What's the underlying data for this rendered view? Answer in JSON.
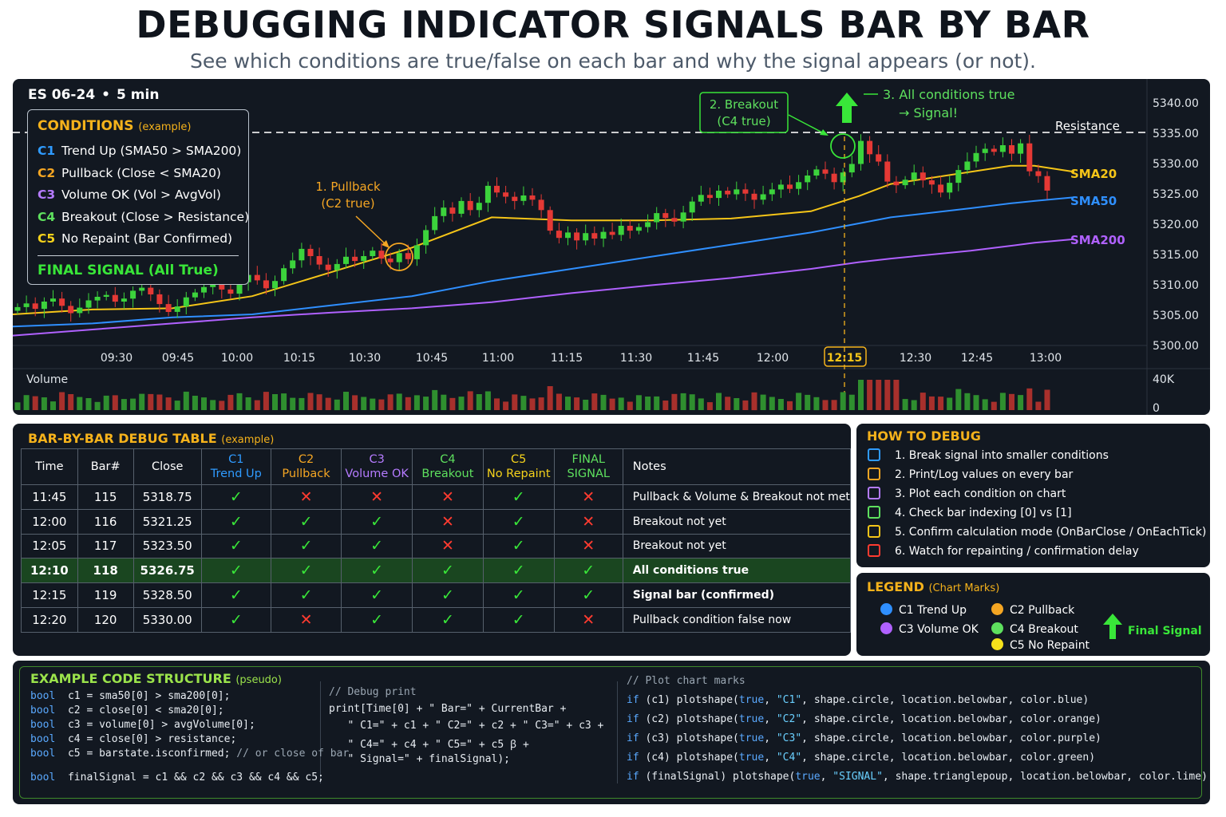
{
  "header": {
    "title": "DEBUGGING INDICATOR SIGNALS BAR BY BAR",
    "subtitle": "See which conditions are true/false on each bar and why the signal appears (or not)."
  },
  "chart": {
    "symbol": "ES 06-24",
    "separator": "•",
    "timeframe": "5 min",
    "price_ticks": [
      "5340.00",
      "5335.00",
      "5330.00",
      "5325.00",
      "5320.00",
      "5315.00",
      "5310.00",
      "5305.00",
      "5300.00"
    ],
    "time_ticks": [
      "09:30",
      "09:45",
      "10:00",
      "10:15",
      "10:30",
      "10:45",
      "11:00",
      "11:15",
      "11:30",
      "11:45",
      "12:00",
      "12:15",
      "12:30",
      "12:45",
      "13:00"
    ],
    "highlight_time": "12:15",
    "resistance_label": "Resistance",
    "resistance_value": 5335,
    "ma_labels": [
      "SMA20",
      "SMA50",
      "SMA200"
    ],
    "annotations": {
      "pullback_line1": "1. Pullback",
      "pullback_line2": "(C2 true)",
      "breakout_line1": "2. Breakout",
      "breakout_line2": "(C4 true)",
      "signal_line1": "3. All conditions true",
      "signal_line2": "→ Signal!"
    },
    "volume": {
      "label": "Volume",
      "max_tick": "40K",
      "min_tick": "0"
    },
    "colors": {
      "up": "#3cd33c",
      "down": "#e53935",
      "sma20": "#f5c518",
      "sma50": "#2f8fff",
      "sma200": "#b061ff",
      "resistance": "#e6e6e6",
      "signal": "#39e639"
    }
  },
  "conditions": {
    "title": "CONDITIONS",
    "title_note": "(example)",
    "items": [
      {
        "tag": "C1",
        "text": "Trend Up (SMA50 > SMA200)",
        "color": "#2f9bff"
      },
      {
        "tag": "C2",
        "text": "Pullback (Close < SMA20)",
        "color": "#f5a623"
      },
      {
        "tag": "C3",
        "text": "Volume OK (Vol > AvgVol)",
        "color": "#b57bff"
      },
      {
        "tag": "C4",
        "text": "Breakout (Close > Resistance)",
        "color": "#5ee05e"
      },
      {
        "tag": "C5",
        "text": "No Repaint (Bar Confirmed)",
        "color": "#f5d21b"
      }
    ],
    "final": "FINAL SIGNAL (All True)"
  },
  "debug_table": {
    "title": "BAR-BY-BAR DEBUG TABLE",
    "title_note": "(example)",
    "headers": [
      {
        "line1": "Time",
        "line2": "",
        "color": "#ffffff"
      },
      {
        "line1": "Bar#",
        "line2": "",
        "color": "#ffffff"
      },
      {
        "line1": "Close",
        "line2": "",
        "color": "#ffffff"
      },
      {
        "line1": "C1",
        "line2": "Trend Up",
        "color": "#2f9bff"
      },
      {
        "line1": "C2",
        "line2": "Pullback",
        "color": "#f5a623"
      },
      {
        "line1": "C3",
        "line2": "Volume OK",
        "color": "#b57bff"
      },
      {
        "line1": "C4",
        "line2": "Breakout",
        "color": "#5ee05e"
      },
      {
        "line1": "C5",
        "line2": "No Repaint",
        "color": "#f5d21b"
      },
      {
        "line1": "FINAL",
        "line2": "SIGNAL",
        "color": "#5ee05e"
      },
      {
        "line1": "Notes",
        "line2": "",
        "color": "#ffffff"
      }
    ],
    "rows": [
      {
        "time": "11:45",
        "bar": "115",
        "close": "5318.75",
        "c": [
          true,
          false,
          false,
          false,
          true,
          false
        ],
        "note": "Pullback & Volume & Breakout not met"
      },
      {
        "time": "12:00",
        "bar": "116",
        "close": "5321.25",
        "c": [
          true,
          true,
          true,
          false,
          true,
          false
        ],
        "note": "Breakout not yet"
      },
      {
        "time": "12:05",
        "bar": "117",
        "close": "5323.50",
        "c": [
          true,
          true,
          true,
          false,
          true,
          false
        ],
        "note": "Breakout not yet"
      },
      {
        "time": "12:10",
        "bar": "118",
        "close": "5326.75",
        "c": [
          true,
          true,
          true,
          true,
          true,
          true
        ],
        "note": "All conditions true"
      },
      {
        "time": "12:15",
        "bar": "119",
        "close": "5328.50",
        "c": [
          true,
          true,
          true,
          true,
          true,
          true
        ],
        "note": "Signal bar (confirmed)"
      },
      {
        "time": "12:20",
        "bar": "120",
        "close": "5330.00",
        "c": [
          true,
          false,
          true,
          true,
          true,
          false
        ],
        "note": "Pullback condition false now"
      }
    ]
  },
  "howto": {
    "title": "HOW TO DEBUG",
    "items": [
      {
        "text": "1. Break signal into smaller conditions",
        "icon": "list-icon",
        "color": "#2f9bff"
      },
      {
        "text": "2. Print/Log values on every bar",
        "icon": "log-icon",
        "color": "#f5a623"
      },
      {
        "text": "3. Plot each condition on chart",
        "icon": "chart-icon",
        "color": "#b57bff"
      },
      {
        "text": "4. Check bar indexing [0] vs [1]",
        "icon": "index-icon",
        "color": "#5ee05e"
      },
      {
        "text": "5. Confirm calculation mode (OnBarClose / OnEachTick)",
        "icon": "gear-icon",
        "color": "#f5c518"
      },
      {
        "text": "6. Watch for repainting / confirmation delay",
        "icon": "warning-icon",
        "color": "#ff3b30"
      }
    ]
  },
  "legend": {
    "title": "LEGEND",
    "title_note": "(Chart Marks)",
    "items": [
      {
        "text": "C1 Trend Up",
        "color": "#2f8fff"
      },
      {
        "text": "C3 Volume OK",
        "color": "#b061ff"
      },
      {
        "text": "C2 Pullback",
        "color": "#f5a623"
      },
      {
        "text": "C4 Breakout",
        "color": "#5ee05e"
      },
      {
        "text": "C5 No Repaint",
        "color": "#f5e11b"
      }
    ],
    "final": "Final Signal"
  },
  "code": {
    "title": "EXAMPLE CODE STRUCTURE",
    "title_note": "(pseudo)",
    "col1": [
      [
        [
          "kw",
          "bool"
        ],
        [
          "",
          "  c1 = sma50[0] > sma200[0];"
        ]
      ],
      [
        [
          "kw",
          "bool"
        ],
        [
          "",
          "  c2 = close[0] < sma20[0];"
        ]
      ],
      [
        [
          "kw",
          "bool"
        ],
        [
          "",
          "  c3 = volume[0] > avgVolume[0];"
        ]
      ],
      [
        [
          "kw",
          "bool"
        ],
        [
          "",
          "  c4 = close[0] > resistance;"
        ]
      ],
      [
        [
          "kw",
          "bool"
        ],
        [
          "",
          "  c5 = barstate.isconfirmed; "
        ],
        [
          "cm",
          "// or close of bar"
        ]
      ],
      [
        [
          "kw",
          "bool"
        ],
        [
          "",
          "  finalSignal = c1 && c2 && c3 && c4 && c5;"
        ]
      ]
    ],
    "col2": [
      [
        [
          "cm",
          "// Debug print"
        ]
      ],
      [
        [
          "",
          "print[Time[0] + \" Bar=\" + CurrentBar +"
        ]
      ],
      [
        [
          "",
          "   \" C1=\" + c1 + \" C2=\" + c2 + \" C3=\" + c3 +"
        ]
      ],
      [
        [
          "",
          "   \" C4=\" + c4 + \" C5=\" + c5 ꞵ +"
        ]
      ],
      [
        [
          "",
          "   \" Signal=\" + finalSignal);"
        ]
      ]
    ],
    "col3": [
      [
        [
          "cm",
          "// Plot chart marks"
        ]
      ],
      [
        [
          "kw",
          "if"
        ],
        [
          "",
          " (c1) plotshape("
        ],
        [
          "kw",
          "true"
        ],
        [
          "",
          ", "
        ],
        [
          "str",
          "\"C1\""
        ],
        [
          "",
          ", shape.circle, location.belowbar, color.blue)"
        ]
      ],
      [
        [
          "kw",
          "if"
        ],
        [
          "",
          " (c2) plotshape("
        ],
        [
          "kw",
          "true"
        ],
        [
          "",
          ", "
        ],
        [
          "str",
          "\"C2\""
        ],
        [
          "",
          ", shape.circle, location.belowbar, color.orange)"
        ]
      ],
      [
        [
          "kw",
          "if"
        ],
        [
          "",
          " (c3) plotshape("
        ],
        [
          "kw",
          "true"
        ],
        [
          "",
          ", "
        ],
        [
          "str",
          "\"C3\""
        ],
        [
          "",
          ", shape.circle, location.belowbar, color.purple)"
        ]
      ],
      [
        [
          "kw",
          "if"
        ],
        [
          "",
          " (c4) plotshape("
        ],
        [
          "kw",
          "true"
        ],
        [
          "",
          ", "
        ],
        [
          "str",
          "\"C4\""
        ],
        [
          "",
          ", shape.circle, location.belowbar, color.green)"
        ]
      ],
      [
        [
          "kw",
          "if"
        ],
        [
          "",
          " (finalSignal) plotshape("
        ],
        [
          "kw",
          "true"
        ],
        [
          "",
          ", "
        ],
        [
          "str",
          "\"SIGNAL\""
        ],
        [
          "",
          ", shape.trianglepoup, location.belowbar, color.lime)"
        ]
      ]
    ]
  }
}
